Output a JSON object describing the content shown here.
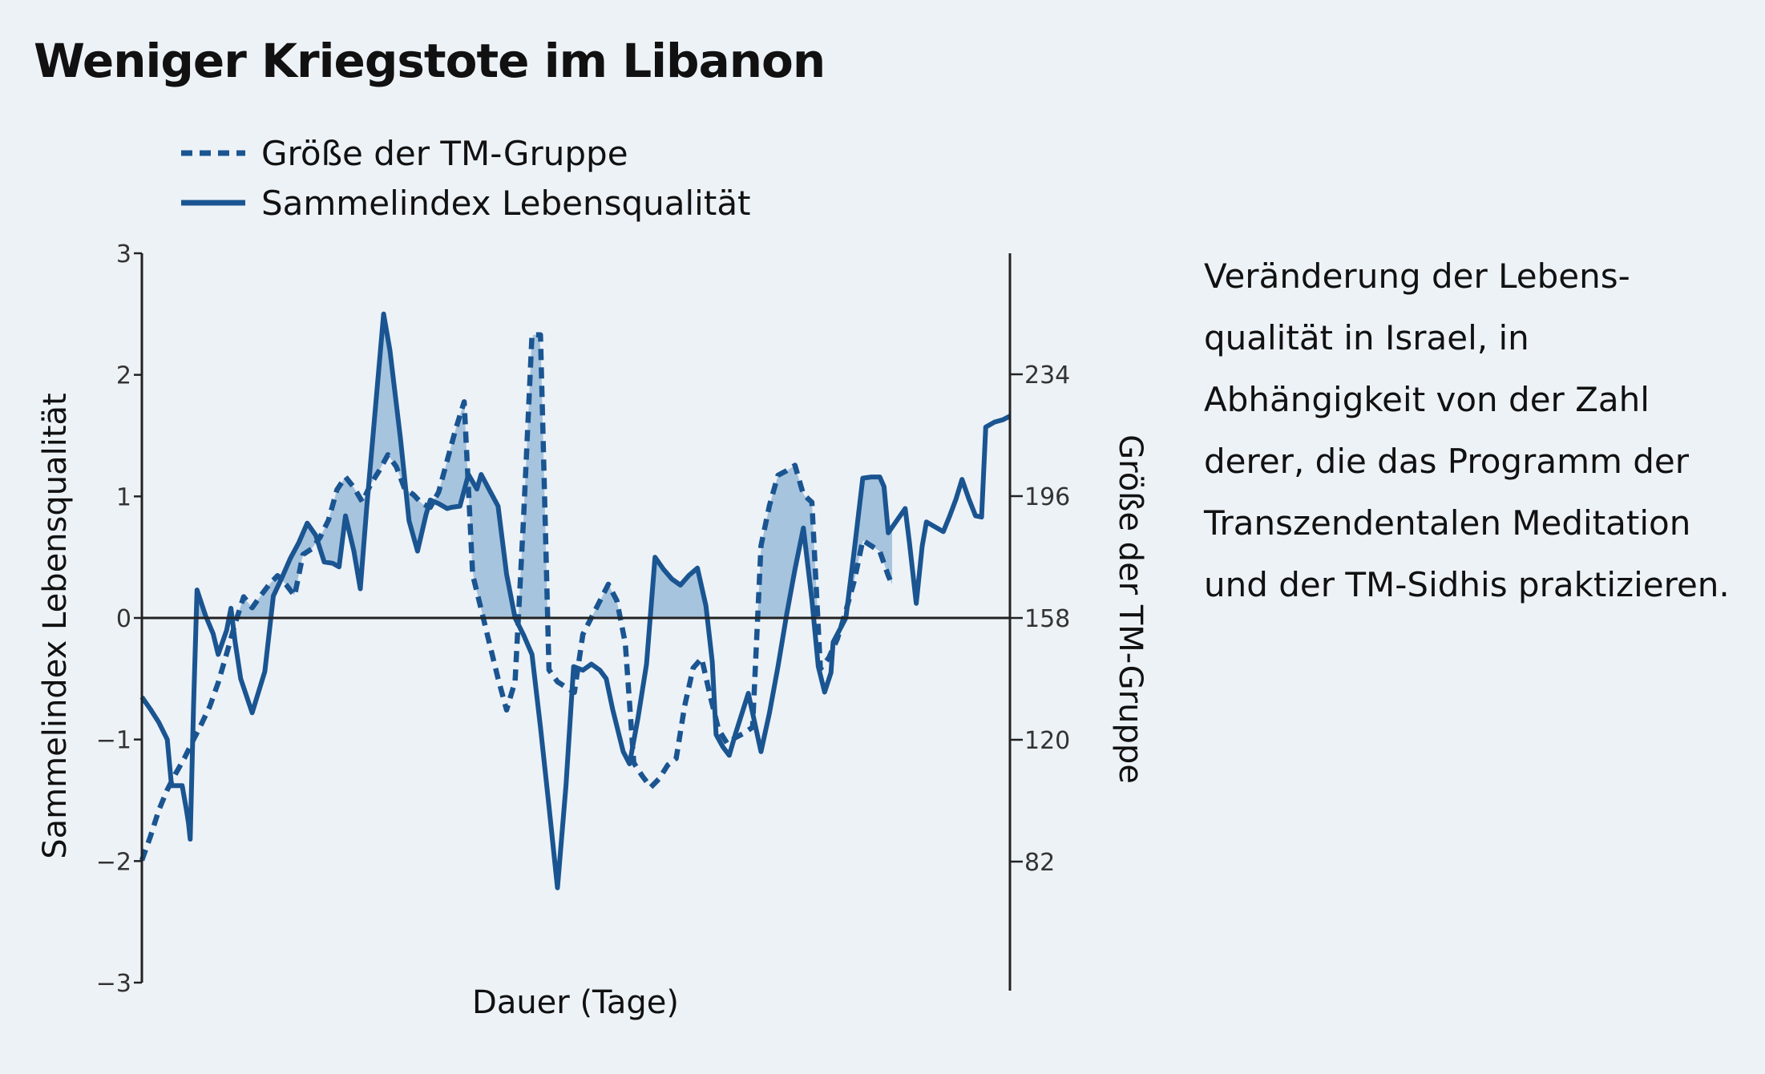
{
  "chart_data": {
    "type": "line",
    "title": "Weniger Kriegstote im Libanon",
    "xlabel": "Dauer (Tage)",
    "ylabel": "Sammelindex Lebensqualität",
    "y2label": "Größe der TM-Gruppe",
    "ylim": [
      -3,
      3
    ],
    "y2lim": [
      36,
      278
    ],
    "yticks": [
      3,
      2,
      1,
      0,
      -1,
      -2,
      -3
    ],
    "ytick_labels": [
      "3",
      "2",
      "1",
      "0",
      "−1",
      "−2",
      "−3"
    ],
    "y2ticks": [
      234,
      196,
      158,
      120,
      82
    ],
    "y2tick_labels": [
      "234",
      "196",
      "158",
      "120",
      "82"
    ],
    "x_tick_labels": [],
    "legend_position": "top-left",
    "grid": false,
    "colors": {
      "line": "#1a5591",
      "fill": "#a7c4de",
      "axis": "#222222",
      "background": "#edf2f7"
    },
    "series": [
      {
        "name": "Größe der TM-Gruppe",
        "axis": "right",
        "style": "dashed",
        "points": [
          [
            0,
            82.4
          ],
          [
            2,
            89.8
          ],
          [
            4,
            98.1
          ],
          [
            6,
            104.4
          ],
          [
            8,
            109.5
          ],
          [
            10,
            114.2
          ],
          [
            12,
            119.6
          ],
          [
            14,
            124.8
          ],
          [
            16,
            130.4
          ],
          [
            18,
            137.8
          ],
          [
            20,
            146.9
          ],
          [
            22,
            156.3
          ],
          [
            24,
            164.6
          ],
          [
            26,
            161.2
          ],
          [
            28,
            164.9
          ],
          [
            30,
            168.4
          ],
          [
            32,
            171.2
          ],
          [
            34,
            168.4
          ],
          [
            36,
            164.9
          ],
          [
            38,
            177.8
          ],
          [
            40,
            179.5
          ],
          [
            42,
            183.1
          ],
          [
            44,
            188.5
          ],
          [
            46,
            198.0
          ],
          [
            48,
            202.0
          ],
          [
            50,
            198.7
          ],
          [
            52,
            194.2
          ],
          [
            54,
            199.8
          ],
          [
            56,
            204.0
          ],
          [
            58,
            208.9
          ],
          [
            60,
            205.2
          ],
          [
            62,
            198.2
          ],
          [
            64,
            196.5
          ],
          [
            66,
            193.7
          ],
          [
            68,
            192.5
          ],
          [
            70,
            197.3
          ],
          [
            72,
            207.1
          ],
          [
            74,
            216.9
          ],
          [
            76,
            225.4
          ],
          [
            78,
            171.5
          ],
          [
            80,
            160.7
          ],
          [
            82,
            149.9
          ],
          [
            84,
            139.1
          ],
          [
            86,
            129.3
          ],
          [
            88,
            138.2
          ],
          [
            90,
            189.2
          ],
          [
            92,
            246.3
          ],
          [
            94,
            246.3
          ],
          [
            96,
            141.8
          ],
          [
            98,
            138.1
          ],
          [
            100,
            136.4
          ],
          [
            102,
            134.8
          ],
          [
            104,
            152.9
          ],
          [
            106,
            158.1
          ],
          [
            108,
            163.3
          ],
          [
            110,
            168.5
          ],
          [
            112,
            163.4
          ],
          [
            114,
            150.1
          ],
          [
            116,
            112.8
          ],
          [
            118,
            108.7
          ],
          [
            120,
            105.2
          ],
          [
            122,
            107.9
          ],
          [
            124,
            112.1
          ],
          [
            126,
            114.2
          ],
          [
            128,
            130.6
          ],
          [
            130,
            142.4
          ],
          [
            132,
            145.4
          ],
          [
            134,
            133.8
          ],
          [
            136,
            123.2
          ],
          [
            138,
            118.9
          ],
          [
            140,
            120.7
          ],
          [
            142,
            122.1
          ],
          [
            144,
            123.9
          ],
          [
            146,
            180.5
          ],
          [
            148,
            193.1
          ],
          [
            150,
            202.5
          ],
          [
            152,
            203.9
          ],
          [
            154,
            205.6
          ],
          [
            156,
            196.5
          ],
          [
            158,
            194.1
          ],
          [
            160,
            142.1
          ],
          [
            162,
            145.6
          ],
          [
            164,
            151.5
          ],
          [
            166,
            160.2
          ],
          [
            168,
            169.6
          ],
          [
            170,
            182.2
          ],
          [
            172,
            180.5
          ],
          [
            174,
            178.8
          ],
          [
            176,
            171.2
          ],
          [
            177,
            168.2
          ]
        ]
      },
      {
        "name": "Sammelindex Lebensqualität",
        "axis": "left",
        "style": "solid",
        "points": [
          [
            0,
            -0.65
          ],
          [
            2,
            -0.75
          ],
          [
            4,
            -0.86
          ],
          [
            6,
            -1.0
          ],
          [
            7,
            -1.38
          ],
          [
            9,
            -1.38
          ],
          [
            9.5,
            -1.38
          ],
          [
            10.5,
            -1.58
          ],
          [
            11,
            -1.69
          ],
          [
            11.4,
            -1.82
          ],
          [
            12.2,
            -0.72
          ],
          [
            13,
            0.23
          ],
          [
            15,
            0.02
          ],
          [
            16.8,
            -0.13
          ],
          [
            18,
            -0.3
          ],
          [
            20,
            -0.1
          ],
          [
            21,
            0.08
          ],
          [
            22,
            -0.2
          ],
          [
            23.3,
            -0.5
          ],
          [
            26,
            -0.78
          ],
          [
            29,
            -0.44
          ],
          [
            31,
            0.18
          ],
          [
            33,
            0.33
          ],
          [
            35,
            0.49
          ],
          [
            37,
            0.62
          ],
          [
            39,
            0.78
          ],
          [
            41,
            0.68
          ],
          [
            43,
            0.46
          ],
          [
            45,
            0.45
          ],
          [
            46.5,
            0.42
          ],
          [
            48,
            0.84
          ],
          [
            50,
            0.55
          ],
          [
            51.5,
            0.24
          ],
          [
            53,
            0.9
          ],
          [
            55,
            1.7
          ],
          [
            57,
            2.5
          ],
          [
            58.5,
            2.2
          ],
          [
            61,
            1.47
          ],
          [
            63,
            0.8
          ],
          [
            65,
            0.55
          ],
          [
            67,
            0.85
          ],
          [
            68,
            0.97
          ],
          [
            70,
            0.94
          ],
          [
            72,
            0.9
          ],
          [
            73,
            0.91
          ],
          [
            75,
            0.92
          ],
          [
            77,
            1.18
          ],
          [
            79,
            1.06
          ],
          [
            80,
            1.18
          ],
          [
            82,
            1.05
          ],
          [
            84,
            0.92
          ],
          [
            86,
            0.36
          ],
          [
            88,
            0.0
          ],
          [
            90,
            -0.14
          ],
          [
            92,
            -0.3
          ],
          [
            94,
            -0.9
          ],
          [
            96,
            -1.55
          ],
          [
            98,
            -2.22
          ],
          [
            100,
            -1.38
          ],
          [
            101.8,
            -0.4
          ],
          [
            104,
            -0.43
          ],
          [
            106,
            -0.38
          ],
          [
            108,
            -0.43
          ],
          [
            109.5,
            -0.5
          ],
          [
            111,
            -0.75
          ],
          [
            113.5,
            -1.1
          ],
          [
            115,
            -1.2
          ],
          [
            117,
            -0.82
          ],
          [
            119,
            -0.38
          ],
          [
            121,
            0.5
          ],
          [
            123,
            0.4
          ],
          [
            125,
            0.32
          ],
          [
            127,
            0.27
          ],
          [
            129,
            0.35
          ],
          [
            131,
            0.41
          ],
          [
            133,
            0.1
          ],
          [
            134.5,
            -0.36
          ],
          [
            135.4,
            -0.96
          ],
          [
            137,
            -1.06
          ],
          [
            138.5,
            -1.13
          ],
          [
            140,
            -0.95
          ],
          [
            143,
            -0.62
          ],
          [
            146,
            -1.1
          ],
          [
            148,
            -0.78
          ],
          [
            150,
            -0.4
          ],
          [
            152,
            0.02
          ],
          [
            154,
            0.4
          ],
          [
            156,
            0.74
          ],
          [
            158,
            0.15
          ],
          [
            159.5,
            -0.4
          ],
          [
            161,
            -0.61
          ],
          [
            162.5,
            -0.45
          ],
          [
            163,
            -0.2
          ],
          [
            164.5,
            -0.1
          ],
          [
            166,
            0.0
          ],
          [
            168,
            0.56
          ],
          [
            170,
            1.15
          ],
          [
            172,
            1.16
          ],
          [
            174,
            1.16
          ],
          [
            175,
            1.08
          ],
          [
            176,
            0.7
          ],
          [
            178,
            0.8
          ],
          [
            180,
            0.9
          ],
          [
            181,
            0.62
          ],
          [
            182.6,
            0.12
          ],
          [
            184,
            0.59
          ],
          [
            185,
            0.79
          ],
          [
            187,
            0.75
          ],
          [
            189,
            0.71
          ],
          [
            190.5,
            0.84
          ],
          [
            192,
            0.98
          ],
          [
            193.4,
            1.14
          ],
          [
            195,
            0.98
          ],
          [
            196.6,
            0.84
          ],
          [
            198,
            0.83
          ],
          [
            199,
            1.57
          ],
          [
            201,
            1.61
          ],
          [
            203,
            1.63
          ],
          [
            204.7,
            1.66
          ]
        ]
      }
    ]
  },
  "side_text": "Veränderung der Lebens-\nqualität in Israel, in\nAbhängigkeit von der Zahl\nderer, die das Programm der\nTranszendentalen Meditation\nund der TM-Sidhis praktizieren."
}
